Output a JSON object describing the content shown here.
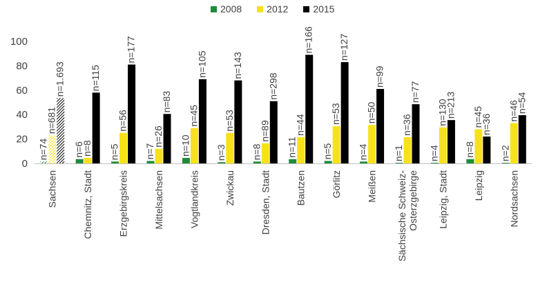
{
  "chart_data": {
    "type": "bar",
    "title": "",
    "xlabel": "",
    "ylabel": "",
    "ylim": [
      0,
      100
    ],
    "yticks": [
      "0",
      "20",
      "40",
      "60",
      "80",
      "100"
    ],
    "grid": false,
    "legend_position": "top",
    "categories": [
      "Sachsen",
      "Chemnitz, Stadt",
      "Erzgebirgskreis",
      "Mittelsachsen",
      "Vogtlandkreis",
      "Zwickau",
      "Dresden, Stadt",
      "Bautzen",
      "Görlitz",
      "Meißen",
      "Sächsische Schweiz-Osterzgebirge",
      "Leipzig, Stadt",
      "Leipzig",
      "Nordsachsen"
    ],
    "category_lines": [
      [
        "Sachsen"
      ],
      [
        "Chemnitz, Stadt"
      ],
      [
        "Erzgebirgskreis"
      ],
      [
        "Mittelsachsen"
      ],
      [
        "Vogtlandkreis"
      ],
      [
        "Zwickau"
      ],
      [
        "Dresden, Stadt"
      ],
      [
        "Bautzen"
      ],
      [
        "Görlitz"
      ],
      [
        "Meißen"
      ],
      [
        "Sächsische Schweiz-",
        "Osterzgebirge"
      ],
      [
        "Leipzig, Stadt"
      ],
      [
        "Leipzig"
      ],
      [
        "Nordsachsen"
      ]
    ],
    "series": [
      {
        "name": "2008",
        "color": "#1e8c3a",
        "values": [
          1.5,
          3.5,
          1.5,
          2,
          4.5,
          1,
          1.5,
          3.5,
          2,
          1.5,
          0.5,
          0.5,
          3.5,
          0.5
        ],
        "labels": [
          "n=74",
          "n=6",
          "n=5",
          "n=7",
          "n=10",
          "n=3",
          "n=8",
          "n=11",
          "n=5",
          "n=4",
          "n=1",
          "n=4",
          "n=8",
          "n=2"
        ]
      },
      {
        "name": "2012",
        "color": "#f7e11b",
        "values": [
          23,
          4.5,
          25,
          12,
          29,
          25,
          16.5,
          21.5,
          30.5,
          31.5,
          21.5,
          29.5,
          28,
          33
        ],
        "labels": [
          "n=681",
          "n=8",
          "n=56",
          "n=26",
          "n=45",
          "n=53",
          "n=89",
          "n=44",
          "n=53",
          "n=50",
          "n=36",
          "n=130",
          "n=45",
          "n=46"
        ]
      },
      {
        "name": "2015",
        "color": "#000000",
        "values": [
          53.5,
          58,
          81,
          40.5,
          69,
          68,
          51,
          89,
          83,
          61,
          48.5,
          35.5,
          22,
          39.5
        ],
        "labels": [
          "n=1.693",
          "n=115",
          "n=177",
          "n=83",
          "n=105",
          "n=143",
          "n=298",
          "n=166",
          "n=127",
          "n=99",
          "n=77",
          "n=213",
          "n=36",
          "n=54"
        ]
      }
    ]
  }
}
